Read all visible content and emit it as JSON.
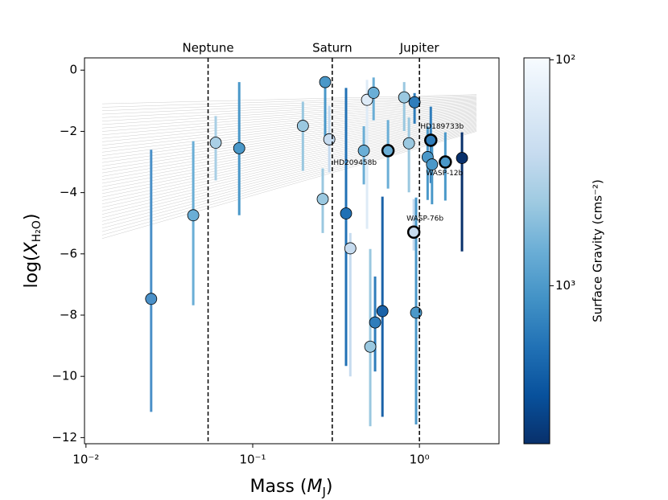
{
  "chart_data": {
    "type": "scatter",
    "xlabel_parts": [
      "Mass (",
      "M",
      "J",
      ")"
    ],
    "ylabel_parts": [
      "log(",
      "X",
      "H₂O",
      ")"
    ],
    "log_x": true,
    "xlim": [
      0.0098,
      3.0
    ],
    "ylim": [
      -12.2,
      0.4
    ],
    "xticks": [
      {
        "value": 0.01,
        "label": "10⁻²"
      },
      {
        "value": 0.1,
        "label": "10⁻¹"
      },
      {
        "value": 1,
        "label": "10⁰"
      }
    ],
    "yticks": [
      {
        "value": -12,
        "label": "−12"
      },
      {
        "value": -10,
        "label": "−10"
      },
      {
        "value": -8,
        "label": "−8"
      },
      {
        "value": -6,
        "label": "−6"
      },
      {
        "value": -4,
        "label": "−4"
      },
      {
        "value": -2,
        "label": "−2"
      },
      0
    ],
    "vlines": [
      {
        "x": 0.054,
        "label": "Neptune"
      },
      {
        "x": 0.3,
        "label": "Saturn"
      },
      {
        "x": 1.0,
        "label": "Jupiter"
      }
    ],
    "model_fan": {
      "x": [
        0.0125,
        2.2
      ],
      "low": [
        -5.5,
        -2.0
      ],
      "high": [
        -1.1,
        -0.8
      ],
      "count": 40,
      "color": "#cccccc"
    },
    "x": [
      0.0246,
      0.044,
      0.06,
      0.083,
      0.2,
      0.263,
      0.272,
      0.288,
      0.363,
      0.385,
      0.485,
      0.464,
      0.507,
      0.531,
      0.542,
      0.6,
      0.648,
      0.81,
      0.865,
      0.935,
      0.925,
      0.955,
      1.12,
      1.17,
      1.19,
      1.43,
      1.8
    ],
    "values": [
      -7.47,
      -4.74,
      -2.37,
      -2.55,
      -1.82,
      -4.21,
      -0.39,
      -2.26,
      -4.68,
      -5.82,
      -0.97,
      -2.63,
      -9.03,
      -0.74,
      -8.24,
      -7.87,
      -2.63,
      -0.89,
      -2.39,
      -1.05,
      -5.29,
      -7.92,
      -2.84,
      -2.29,
      -3.08,
      -3.0,
      -2.87
    ],
    "errors_low": [
      3.69,
      2.94,
      1.23,
      2.19,
      1.47,
      1.11,
      1.77,
      1.08,
      4.98,
      4.18,
      4.21,
      1.1,
      2.6,
      0.9,
      1.6,
      3.45,
      1.24,
      1.1,
      1.6,
      0.7,
      0.6,
      3.65,
      1.4,
      1.4,
      1.3,
      1.26,
      3.05
    ],
    "errors_high": [
      4.87,
      2.42,
      0.87,
      2.16,
      0.79,
      1.0,
      0.13,
      1.1,
      4.1,
      0.5,
      0.65,
      0.8,
      3.19,
      0.5,
      1.5,
      3.74,
      1.0,
      0.5,
      0.84,
      0.3,
      1.08,
      3.76,
      1.0,
      1.1,
      0.7,
      0.97,
      0.84
    ],
    "colors": [
      "#4a90c8",
      "#6aaed6",
      "#a9cfe5",
      "#4a98c9",
      "#9ac8e0",
      "#9ac8e0",
      "#4a98c9",
      "#c6dbef",
      "#2171b5",
      "#c6dbef",
      "#deebf7",
      "#6aaed6",
      "#9ac8e0",
      "#6aaed6",
      "#2f7dbb",
      "#1a62a8",
      "#6aaed6",
      "#9ac8e0",
      "#9ac8e0",
      "#2f7dbb",
      "#c6dbef",
      "#4a98c9",
      "#4a98c9",
      "#2f7dbb",
      "#4a98c9",
      "#4a98c9",
      "#08306b"
    ],
    "annotations": [
      {
        "text": "HD209458b",
        "point": 16
      },
      {
        "text": "WASP-76b",
        "point": 20
      },
      {
        "text": "HD189733b",
        "point": 23
      },
      {
        "text": "WASP-12b",
        "point": 25
      }
    ],
    "colorbar": {
      "label": "Surface Gravity (cms⁻²)",
      "log": true,
      "lim": [
        98,
        5000
      ],
      "ticks": [
        {
          "value": 100,
          "label": "10²"
        },
        {
          "value": 1000,
          "label": "10³"
        }
      ],
      "colors": [
        "#f7fbff",
        "#deebf7",
        "#c6dbef",
        "#9ecae1",
        "#6baed6",
        "#4292c6",
        "#2171b5",
        "#08519c",
        "#08306b"
      ]
    }
  }
}
